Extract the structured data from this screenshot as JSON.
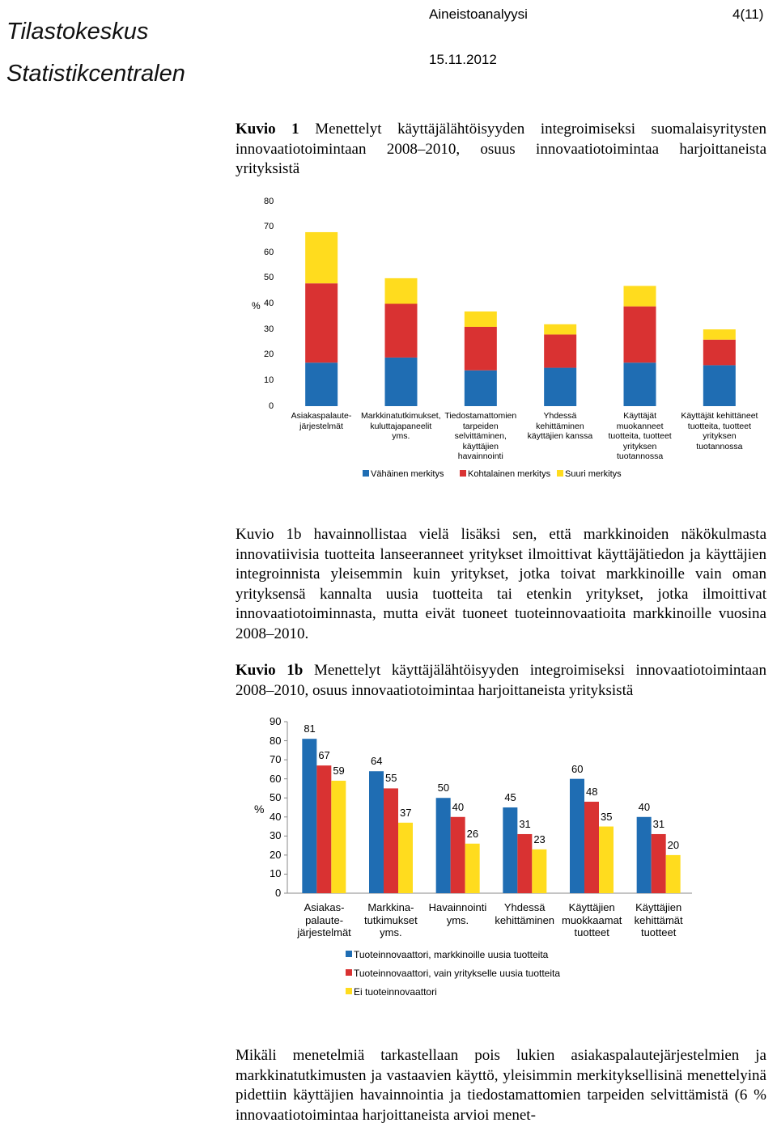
{
  "header": {
    "logo_line1": "Tilastokeskus",
    "logo_line2": "Statistikcentralen",
    "title": "Aineistoanalyysi",
    "page": "4(11)",
    "date": "15.11.2012"
  },
  "caption1": {
    "label": "Kuvio 1",
    "text": "Menettelyt käyttäjälähtöisyyden integroimiseksi suomalaisyritysten innovaatiotoimintaan 2008–2010, osuus innovaatiotoimintaa harjoittaneista yrityksistä"
  },
  "paragraph1": "Kuvio 1b havainnollistaa vielä lisäksi sen, että markkinoiden näkökulmasta innovatiivisia tuotteita lanseeranneet yritykset ilmoittivat käyttäjätiedon ja käyttäjien integroinnista yleisemmin kuin yritykset, jotka toivat markkinoille vain oman yrityksensä kannalta uusia tuotteita tai etenkin yritykset, jotka ilmoittivat innovaatiotoiminnasta, mutta eivät tuoneet tuoteinnovaatioita markkinoille vuosina 2008–2010.",
  "caption2": {
    "label": "Kuvio 1b",
    "text": "Menettelyt käyttäjälähtöisyyden integroimiseksi innovaatiotoimintaan 2008–2010, osuus innovaatiotoimintaa harjoittaneista yrityksistä"
  },
  "paragraph2": "Mikäli menetelmiä tarkastellaan pois lukien asiakaspalautejärjestelmien ja markkinatutkimusten ja vastaavien käyttö, yleisimmin merkityksellisinä menettelyinä pidettiin käyttäjien havainnointia ja tiedostamattomien tarpeiden selvittämistä (6 % innovaatiotoimintaa harjoittaneista arvioi menet-",
  "chart_data": [
    {
      "type": "bar",
      "stacked": true,
      "y_label": "%",
      "categories": [
        "Asiakaspalaute-\njärjestelmät",
        "Markkinatutkimukset,\nkuluttajapaneelit\nyms.",
        "Tiedostamattomien\ntarpeiden\nselvittäminen,\nkäyttäjien\nhavainnointi",
        "Yhdessä\nkehittäminen\nkäyttäjien kanssa",
        "Käyttäjät\nmuokanneet\ntuotteita, tuotteet\nyrityksen\ntuotannossa",
        "Käyttäjät kehittäneet\ntuotteita, tuotteet\nyrityksen\ntuotannossa"
      ],
      "series": [
        {
          "name": "Vähäinen merkitys",
          "color": "#1f6db3",
          "values": [
            17,
            19,
            14,
            15,
            17,
            16
          ]
        },
        {
          "name": "Kohtalainen merkitys",
          "color": "#d93232",
          "values": [
            31,
            21,
            17,
            13,
            22,
            10
          ]
        },
        {
          "name": "Suuri merkitys",
          "color": "#ffdc1e",
          "values": [
            20,
            10,
            6,
            4,
            8,
            4
          ]
        }
      ],
      "ylim": [
        0,
        80
      ],
      "yticks": [
        0,
        10,
        20,
        30,
        40,
        50,
        60,
        70,
        80
      ],
      "legend": "bottom"
    },
    {
      "type": "bar",
      "stacked": false,
      "data_labels": true,
      "y_label": "%",
      "categories": [
        "Asiakas-\npalaute-\njärjestelmät",
        "Markkina-\ntutkimukset\nyms.",
        "Havainnointi\nyms.",
        "Yhdessä\nkehittäminen",
        "Käyttäjien\nmuokkaamat\ntuotteet",
        "Käyttäjien\nkehittämät\ntuotteet"
      ],
      "series": [
        {
          "name": "Tuoteinnovaattori, markkinoille uusia tuotteita",
          "color": "#1f6db3",
          "values": [
            81,
            64,
            50,
            45,
            60,
            40
          ]
        },
        {
          "name": "Tuoteinnovaattori, vain yritykselle uusia tuotteita",
          "color": "#d93232",
          "values": [
            67,
            55,
            40,
            31,
            48,
            31
          ]
        },
        {
          "name": "Ei tuoteinnovaattori",
          "color": "#ffdc1e",
          "values": [
            59,
            37,
            26,
            23,
            35,
            20
          ]
        }
      ],
      "ylim": [
        0,
        90
      ],
      "yticks": [
        0,
        10,
        20,
        30,
        40,
        50,
        60,
        70,
        80,
        90
      ],
      "legend": "bottom"
    }
  ]
}
